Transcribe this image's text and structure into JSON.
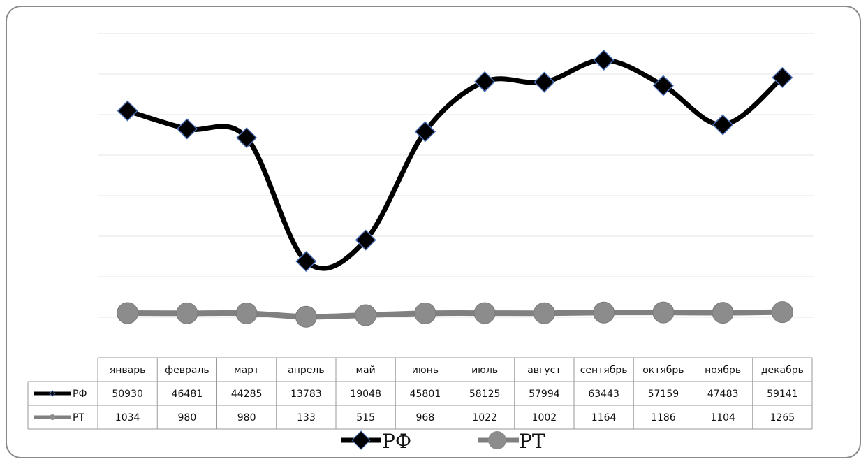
{
  "chart_data": {
    "type": "line",
    "categories": [
      "январь",
      "февраль",
      "март",
      "апрель",
      "май",
      "июнь",
      "июль",
      "август",
      "сентябрь",
      "октябрь",
      "ноябрь",
      "декабрь"
    ],
    "series": [
      {
        "name": "РФ",
        "values": [
          50930,
          46481,
          44285,
          13783,
          19048,
          45801,
          58125,
          57994,
          63443,
          57159,
          47483,
          59141
        ],
        "color": "#000000",
        "marker": "diamond"
      },
      {
        "name": "РТ",
        "values": [
          1034,
          980,
          980,
          133,
          515,
          968,
          1022,
          1002,
          1164,
          1186,
          1104,
          1265
        ],
        "color": "#808080",
        "marker": "circle"
      }
    ],
    "ylim": [
      -10000,
      70000
    ],
    "grid": true,
    "legend": "bottom",
    "data_table": true
  }
}
